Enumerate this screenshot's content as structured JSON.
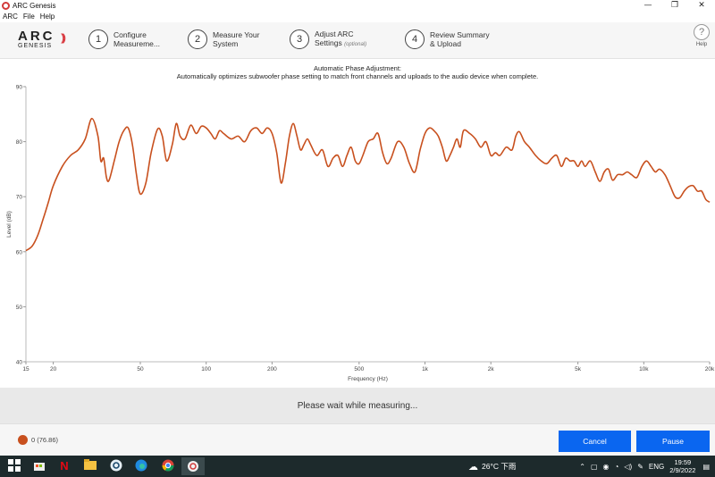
{
  "window": {
    "title": "ARC Genesis",
    "controls": [
      "—",
      "❐",
      "✕"
    ]
  },
  "menu": [
    "ARC",
    "File",
    "Help"
  ],
  "logo": {
    "main": "ARC",
    "sub": "GENESIS"
  },
  "steps": [
    {
      "num": "1",
      "line1": "Configure",
      "line2": "Measureme...",
      "optional": ""
    },
    {
      "num": "2",
      "line1": "Measure Your",
      "line2": "System",
      "optional": ""
    },
    {
      "num": "3",
      "line1": "Adjust ARC",
      "line2": "Settings",
      "optional": "(optional)"
    },
    {
      "num": "4",
      "line1": "Review Summary",
      "line2": "& Upload",
      "optional": ""
    }
  ],
  "help": {
    "icon": "?",
    "label": "Help"
  },
  "chart": {
    "title_line1": "Automatic Phase Adjustment:",
    "title_line2": "Automatically optimizes subwoofer phase setting to match front channels and uploads to the audio device when complete."
  },
  "chart_data": {
    "type": "line",
    "title": "Automatic Phase Adjustment:",
    "subtitle": "Automatically optimizes subwoofer phase setting to match front channels and uploads to the audio device when complete.",
    "xlabel": "Frequency (Hz)",
    "ylabel": "Level (dB)",
    "xscale": "log",
    "xlim": [
      15,
      20000
    ],
    "ylim": [
      40,
      90
    ],
    "yticks": [
      40,
      50,
      60,
      70,
      80,
      90
    ],
    "xticks": [
      {
        "v": 15,
        "label": "15"
      },
      {
        "v": 20,
        "label": "20"
      },
      {
        "v": 50,
        "label": "50"
      },
      {
        "v": 100,
        "label": "100"
      },
      {
        "v": 200,
        "label": "200"
      },
      {
        "v": 500,
        "label": "500"
      },
      {
        "v": 1000,
        "label": "1k"
      },
      {
        "v": 2000,
        "label": "2k"
      },
      {
        "v": 5000,
        "label": "5k"
      },
      {
        "v": 10000,
        "label": "10k"
      },
      {
        "v": 20000,
        "label": "20k"
      }
    ],
    "series": [
      {
        "color": "#c8501e",
        "points": [
          [
            15,
            60.2
          ],
          [
            16,
            61
          ],
          [
            17,
            63
          ],
          [
            18,
            66
          ],
          [
            19,
            69
          ],
          [
            20,
            72
          ],
          [
            22,
            75.5
          ],
          [
            24,
            77.5
          ],
          [
            26,
            78.5
          ],
          [
            28,
            80.5
          ],
          [
            30,
            84.2
          ],
          [
            32,
            81
          ],
          [
            33,
            76.5
          ],
          [
            34,
            77
          ],
          [
            35,
            73.5
          ],
          [
            36,
            73
          ],
          [
            38,
            76.5
          ],
          [
            40,
            80
          ],
          [
            42,
            82
          ],
          [
            44,
            82.5
          ],
          [
            46,
            79.5
          ],
          [
            48,
            74
          ],
          [
            50,
            70.5
          ],
          [
            53,
            72.5
          ],
          [
            56,
            78
          ],
          [
            60,
            82.3
          ],
          [
            63,
            81
          ],
          [
            66,
            76.5
          ],
          [
            70,
            79.5
          ],
          [
            73,
            83.3
          ],
          [
            76,
            81
          ],
          [
            80,
            80.5
          ],
          [
            85,
            83
          ],
          [
            90,
            81.5
          ],
          [
            95,
            82.8
          ],
          [
            100,
            82.5
          ],
          [
            105,
            81.5
          ],
          [
            110,
            80.5
          ],
          [
            115,
            82
          ],
          [
            120,
            81.5
          ],
          [
            130,
            80.5
          ],
          [
            140,
            81
          ],
          [
            150,
            80
          ],
          [
            160,
            82
          ],
          [
            170,
            82.5
          ],
          [
            180,
            81.5
          ],
          [
            190,
            82.5
          ],
          [
            200,
            81.5
          ],
          [
            210,
            78
          ],
          [
            220,
            72.5
          ],
          [
            230,
            76
          ],
          [
            240,
            81
          ],
          [
            250,
            83.3
          ],
          [
            260,
            81
          ],
          [
            270,
            78.5
          ],
          [
            280,
            79.5
          ],
          [
            290,
            80.5
          ],
          [
            300,
            79.5
          ],
          [
            320,
            77.5
          ],
          [
            340,
            78.5
          ],
          [
            360,
            75.5
          ],
          [
            380,
            77
          ],
          [
            400,
            77.5
          ],
          [
            420,
            75.5
          ],
          [
            440,
            77.5
          ],
          [
            460,
            79
          ],
          [
            480,
            76.5
          ],
          [
            500,
            76
          ],
          [
            520,
            77.5
          ],
          [
            550,
            80
          ],
          [
            580,
            80.5
          ],
          [
            610,
            81.5
          ],
          [
            640,
            78
          ],
          [
            670,
            76
          ],
          [
            700,
            77
          ],
          [
            750,
            80
          ],
          [
            800,
            79
          ],
          [
            850,
            76
          ],
          [
            900,
            74.5
          ],
          [
            950,
            78.5
          ],
          [
            1000,
            81.5
          ],
          [
            1050,
            82.5
          ],
          [
            1100,
            82
          ],
          [
            1150,
            81
          ],
          [
            1200,
            79
          ],
          [
            1250,
            76.5
          ],
          [
            1300,
            77.5
          ],
          [
            1350,
            79
          ],
          [
            1400,
            80.5
          ],
          [
            1450,
            79
          ],
          [
            1500,
            82
          ],
          [
            1600,
            81.5
          ],
          [
            1700,
            80.5
          ],
          [
            1800,
            79
          ],
          [
            1900,
            80
          ],
          [
            2000,
            77.5
          ],
          [
            2100,
            78
          ],
          [
            2200,
            77.5
          ],
          [
            2350,
            79
          ],
          [
            2500,
            78.5
          ],
          [
            2600,
            81
          ],
          [
            2700,
            81.8
          ],
          [
            2850,
            80
          ],
          [
            3000,
            79
          ],
          [
            3200,
            77.5
          ],
          [
            3400,
            76.5
          ],
          [
            3600,
            76
          ],
          [
            3800,
            77
          ],
          [
            4000,
            77.5
          ],
          [
            4200,
            75.5
          ],
          [
            4400,
            77
          ],
          [
            4600,
            76.5
          ],
          [
            4800,
            76.5
          ],
          [
            5000,
            75.5
          ],
          [
            5200,
            76.5
          ],
          [
            5400,
            75.5
          ],
          [
            5700,
            76.5
          ],
          [
            6000,
            74.5
          ],
          [
            6300,
            72.8
          ],
          [
            6600,
            74.5
          ],
          [
            6900,
            75
          ],
          [
            7200,
            73
          ],
          [
            7600,
            74
          ],
          [
            8000,
            74
          ],
          [
            8400,
            74.5
          ],
          [
            8800,
            74
          ],
          [
            9300,
            73.5
          ],
          [
            9800,
            75.5
          ],
          [
            10300,
            76.5
          ],
          [
            10800,
            75.5
          ],
          [
            11300,
            74.5
          ],
          [
            11800,
            75
          ],
          [
            12500,
            74
          ],
          [
            13200,
            72
          ],
          [
            13900,
            70
          ],
          [
            14600,
            69.8
          ],
          [
            15300,
            71
          ],
          [
            16000,
            71.8
          ],
          [
            16800,
            72
          ],
          [
            17600,
            71
          ],
          [
            18400,
            71
          ],
          [
            19200,
            69.5
          ],
          [
            20000,
            69
          ]
        ]
      }
    ],
    "grid": false,
    "legend": "bottom-left"
  },
  "status": {
    "message": "Please wait while measuring..."
  },
  "legend": {
    "text": "0 (76.86)",
    "color": "#c8501e"
  },
  "buttons": {
    "cancel": "Cancel",
    "pause": "Pause"
  },
  "taskbar": {
    "apps": [
      "windows-icon",
      "store-icon",
      "netflix-icon",
      "explorer-icon",
      "zoom-icon",
      "edge-icon",
      "chrome-icon",
      "arc-icon"
    ],
    "weather": "26°C 下雨",
    "lang": "ENG",
    "time": "19:59",
    "date": "2/9/2022"
  }
}
